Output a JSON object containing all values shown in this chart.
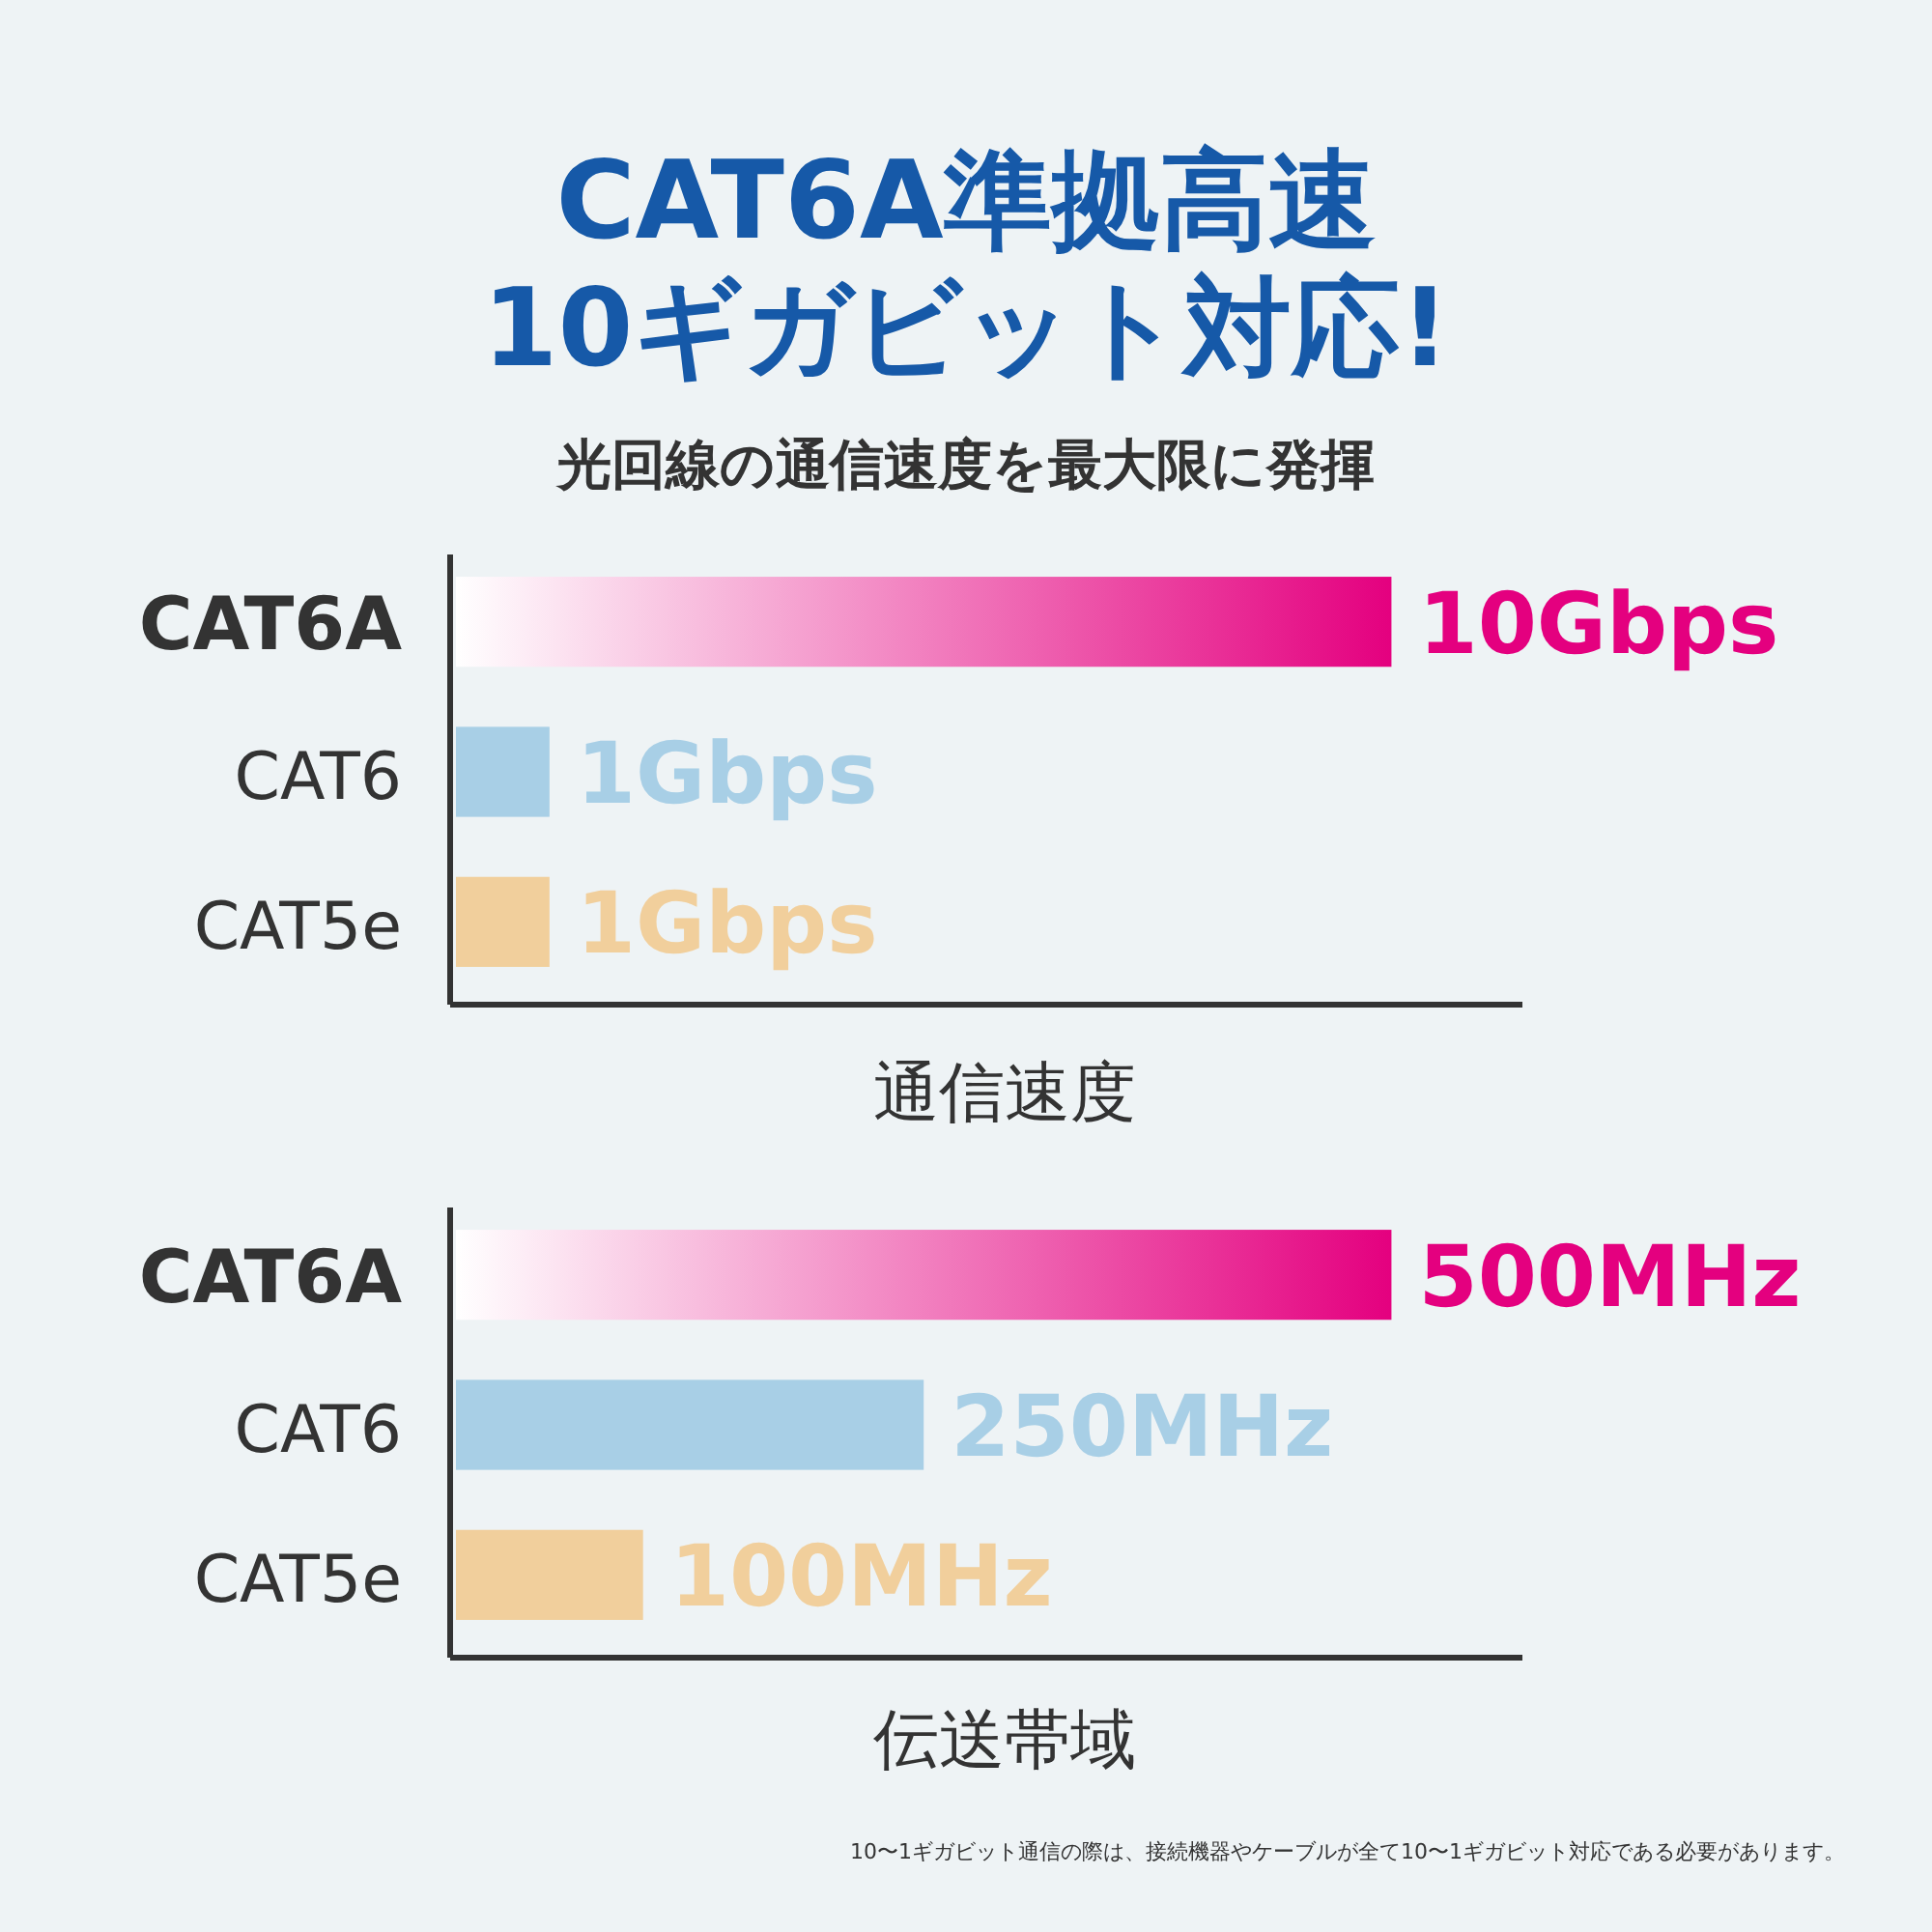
{
  "chart_data": [
    {
      "type": "bar",
      "orientation": "horizontal",
      "title": "CAT6A準拠高速10ギガビット対応!",
      "subtitle": "光回線の通信速度を最大限に発揮",
      "xlabel": "通信速度",
      "categories": [
        "CAT6A",
        "CAT6",
        "CAT5e"
      ],
      "values": [
        10,
        1,
        1
      ],
      "colors": [
        "#e4007f",
        "#a8cfe6",
        "#f1cf9c"
      ],
      "value_labels": [
        "10Gbps",
        "1Gbps",
        "1Gbps"
      ],
      "xlim": [
        0,
        11.4
      ]
    },
    {
      "type": "bar",
      "orientation": "horizontal",
      "xlabel": "伝送帯域",
      "categories": [
        "CAT6A",
        "CAT6",
        "CAT5e"
      ],
      "values": [
        500,
        250,
        100
      ],
      "colors": [
        "#e4007f",
        "#a8cfe6",
        "#f1cf9c"
      ],
      "value_labels": [
        "500MHz",
        "250MHz",
        "100MHz"
      ],
      "xlim": [
        0,
        570
      ],
      "annotations": [
        "10〜1ギガビット通信の際は、接続機器やケーブルが全て10〜1ギガビット対応である必要があります。"
      ]
    }
  ]
}
